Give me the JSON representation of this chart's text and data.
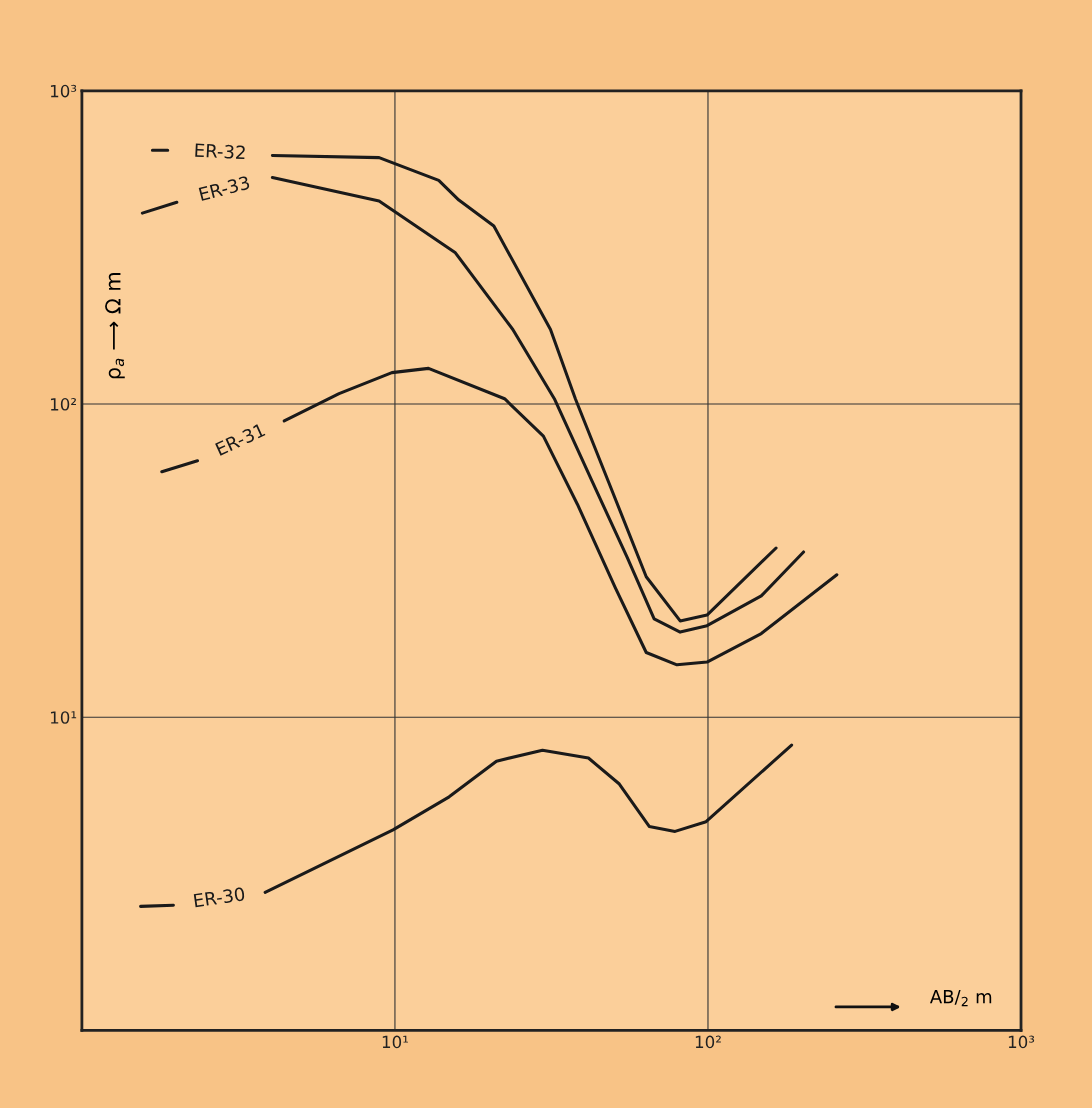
{
  "chart_data": {
    "type": "line",
    "xlabel": "AB/$_{2}$ m",
    "ylabel": "ρ$_{a}$ ⟶ Ω m",
    "log": "xy",
    "xlim": [
      1,
      1000
    ],
    "ylim": [
      1,
      1000
    ],
    "xticks": [
      {
        "value": 1,
        "label": null
      },
      {
        "value": 10,
        "label": "10¹"
      },
      {
        "value": 100,
        "label": "10²"
      },
      {
        "value": 1000,
        "label": "10³"
      }
    ],
    "yticks": [
      {
        "value": 1,
        "label": null
      },
      {
        "value": 10,
        "label": "10¹"
      },
      {
        "value": 100,
        "label": "10²"
      },
      {
        "value": 1000,
        "label": "10³"
      }
    ],
    "grid": true,
    "marker": "none",
    "line_style": "solid",
    "series": [
      {
        "name": "ER-32",
        "color": "#1a1a1a",
        "x": [
          1.68,
          1.88,
          2.9,
          4.06,
          8.9,
          13.8,
          16,
          20.7,
          31.4,
          37.7,
          48.1,
          63.5,
          81.5,
          99.3,
          165
        ],
        "values": [
          646,
          646,
          null,
          622,
          612,
          518,
          448,
          370,
          173,
          104,
          56.5,
          28.1,
          20.3,
          21.2,
          34.7
        ]
      },
      {
        "name": "ER-33",
        "color": "#1a1a1a",
        "x": [
          1.56,
          2.01,
          3,
          4.06,
          8.9,
          15.6,
          23.8,
          32.3,
          42.7,
          55.2,
          67.3,
          81.5,
          99.3,
          148,
          202
        ],
        "values": [
          407,
          441,
          null,
          529,
          445,
          304,
          173,
          104,
          56.5,
          32.4,
          20.6,
          18.7,
          19.6,
          24.4,
          33.7
        ]
      },
      {
        "name": "ER-31",
        "color": "#1a1a1a",
        "x": [
          1.8,
          2.34,
          3.2,
          4.43,
          6.63,
          9.78,
          12.8,
          22.4,
          29.8,
          38.3,
          50.6,
          63.5,
          79.6,
          99.3,
          148,
          258
        ],
        "values": [
          60.8,
          65.9,
          null,
          88.3,
          108,
          126,
          130,
          104,
          79,
          47.8,
          25.9,
          16.1,
          14.7,
          15.0,
          18.5,
          28.5
        ]
      },
      {
        "name": "ER-30",
        "color": "#1a1a1a",
        "x": [
          1.54,
          1.96,
          2.8,
          3.85,
          6.16,
          9.86,
          14.9,
          21.1,
          29.6,
          41.5,
          52.1,
          64.9,
          78.5,
          98.6,
          185
        ],
        "values": [
          2.49,
          2.51,
          null,
          2.76,
          3.47,
          4.37,
          5.57,
          7.24,
          7.85,
          7.41,
          6.12,
          4.48,
          4.32,
          4.64,
          8.15
        ]
      }
    ]
  }
}
